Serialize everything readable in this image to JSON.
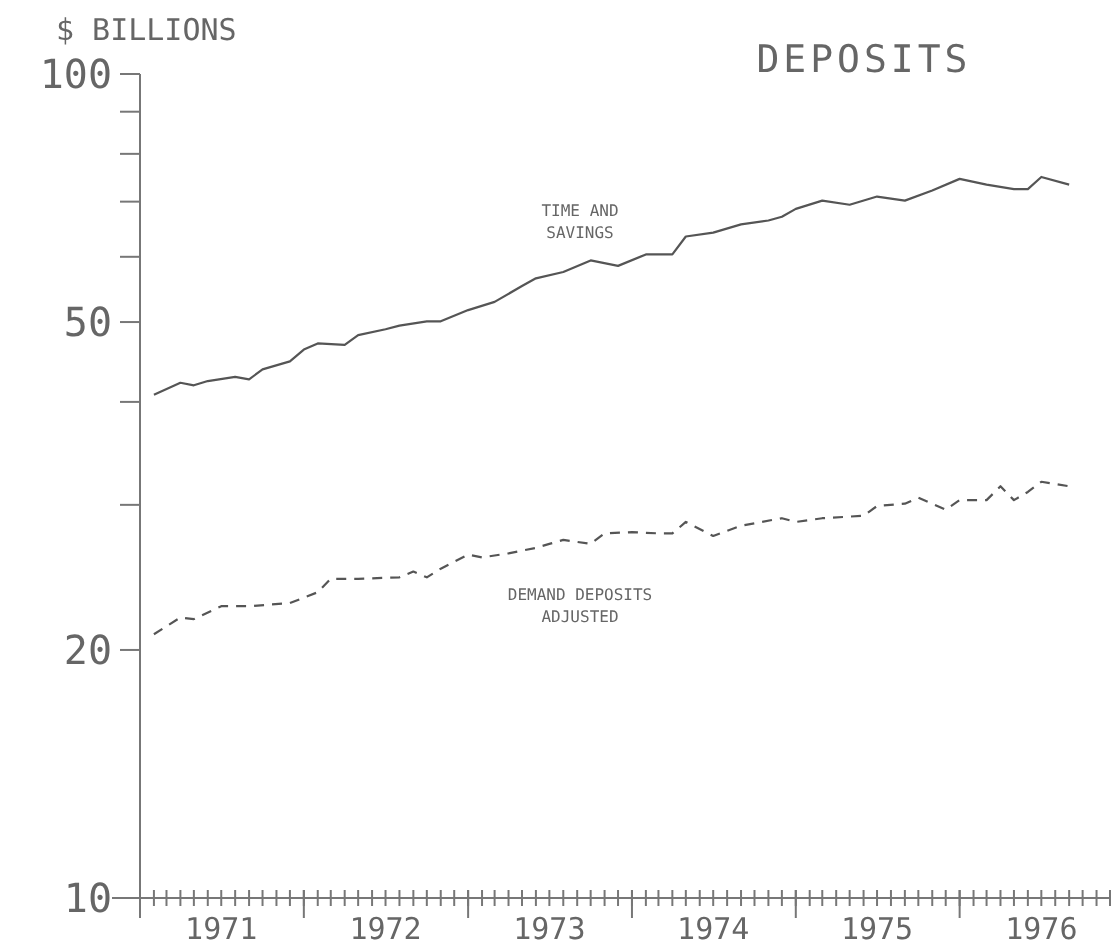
{
  "chart_data": {
    "type": "line",
    "title": "DEPOSITS",
    "ylabel": "$ BILLIONS",
    "log": "y",
    "grid": false,
    "marker": "none",
    "xlim": [
      "1971-01",
      "1976-12"
    ],
    "xticks": [
      {
        "value": "1971-01",
        "label": null
      },
      {
        "value": "1971-07",
        "label": "1971"
      },
      {
        "value": "1972-01",
        "label": null
      },
      {
        "value": "1972-07",
        "label": "1972"
      },
      {
        "value": "1973-01",
        "label": null
      },
      {
        "value": "1973-07",
        "label": "1973"
      },
      {
        "value": "1974-01",
        "label": null
      },
      {
        "value": "1974-07",
        "label": "1974"
      },
      {
        "value": "1975-01",
        "label": null
      },
      {
        "value": "1975-07",
        "label": "1975"
      },
      {
        "value": "1976-01",
        "label": null
      },
      {
        "value": "1976-07",
        "label": "1976"
      }
    ],
    "ylim": [
      10,
      100
    ],
    "yticks": [
      10,
      20,
      {
        "value": 30,
        "label": null
      },
      {
        "value": 40,
        "label": null
      },
      50,
      {
        "value": 60,
        "label": null
      },
      {
        "value": 70,
        "label": null
      },
      {
        "value": 80,
        "label": null
      },
      {
        "value": 90,
        "label": null
      },
      100
    ],
    "series": [
      {
        "name": "TIME AND SAVINGS",
        "color": "#555555",
        "line_style": "solid",
        "x": [
          "1971-02",
          "1971-04",
          "1971-05",
          "1971-06",
          "1971-08",
          "1971-09",
          "1971-10",
          "1971-12",
          "1972-01",
          "1972-02",
          "1972-04",
          "1972-05",
          "1972-07",
          "1972-08",
          "1972-10",
          "1972-11",
          "1973-01",
          "1973-03",
          "1973-05",
          "1973-06",
          "1973-08",
          "1973-10",
          "1973-12",
          "1974-02",
          "1974-04",
          "1974-05",
          "1974-07",
          "1974-09",
          "1974-11",
          "1974-12",
          "1975-01",
          "1975-03",
          "1975-05",
          "1975-07",
          "1975-09",
          "1975-11",
          "1976-01",
          "1976-03",
          "1976-05",
          "1976-06",
          "1976-07",
          "1976-09"
        ],
        "values": [
          40.8,
          42.2,
          41.9,
          42.4,
          42.9,
          42.6,
          43.8,
          44.8,
          46.3,
          47.1,
          46.9,
          48.2,
          49.0,
          49.5,
          50.1,
          50.1,
          51.7,
          52.9,
          55.3,
          56.5,
          57.5,
          59.4,
          58.5,
          60.4,
          60.4,
          63.5,
          64.2,
          65.7,
          66.4,
          67.1,
          68.6,
          70.2,
          69.4,
          71.0,
          70.2,
          72.2,
          74.6,
          73.4,
          72.5,
          72.5,
          75.0,
          73.4
        ]
      },
      {
        "name": "DEMAND DEPOSITS ADJUSTED",
        "color": "#555555",
        "line_style": "dashed",
        "x": [
          "1971-02",
          "1971-04",
          "1971-05",
          "1971-07",
          "1971-09",
          "1971-12",
          "1972-02",
          "1972-03",
          "1972-05",
          "1972-08",
          "1972-09",
          "1972-10",
          "1972-11",
          "1973-01",
          "1973-02",
          "1973-04",
          "1973-06",
          "1973-07",
          "1973-08",
          "1973-10",
          "1973-11",
          "1974-01",
          "1974-03",
          "1974-04",
          "1974-05",
          "1974-07",
          "1974-09",
          "1974-12",
          "1975-01",
          "1975-03",
          "1975-06",
          "1975-07",
          "1975-09",
          "1975-10",
          "1975-12",
          "1976-01",
          "1976-03",
          "1976-04",
          "1976-05",
          "1976-06",
          "1976-07",
          "1976-09"
        ],
        "values": [
          20.9,
          21.9,
          21.8,
          22.6,
          22.6,
          22.8,
          23.5,
          24.4,
          24.4,
          24.5,
          24.9,
          24.5,
          25.1,
          26.1,
          25.9,
          26.2,
          26.6,
          26.9,
          27.2,
          26.9,
          27.7,
          27.8,
          27.7,
          27.7,
          28.6,
          27.5,
          28.3,
          28.9,
          28.6,
          28.9,
          29.1,
          29.9,
          30.1,
          30.6,
          29.6,
          30.4,
          30.4,
          31.6,
          30.4,
          31.1,
          32.0,
          31.6
        ]
      }
    ]
  }
}
